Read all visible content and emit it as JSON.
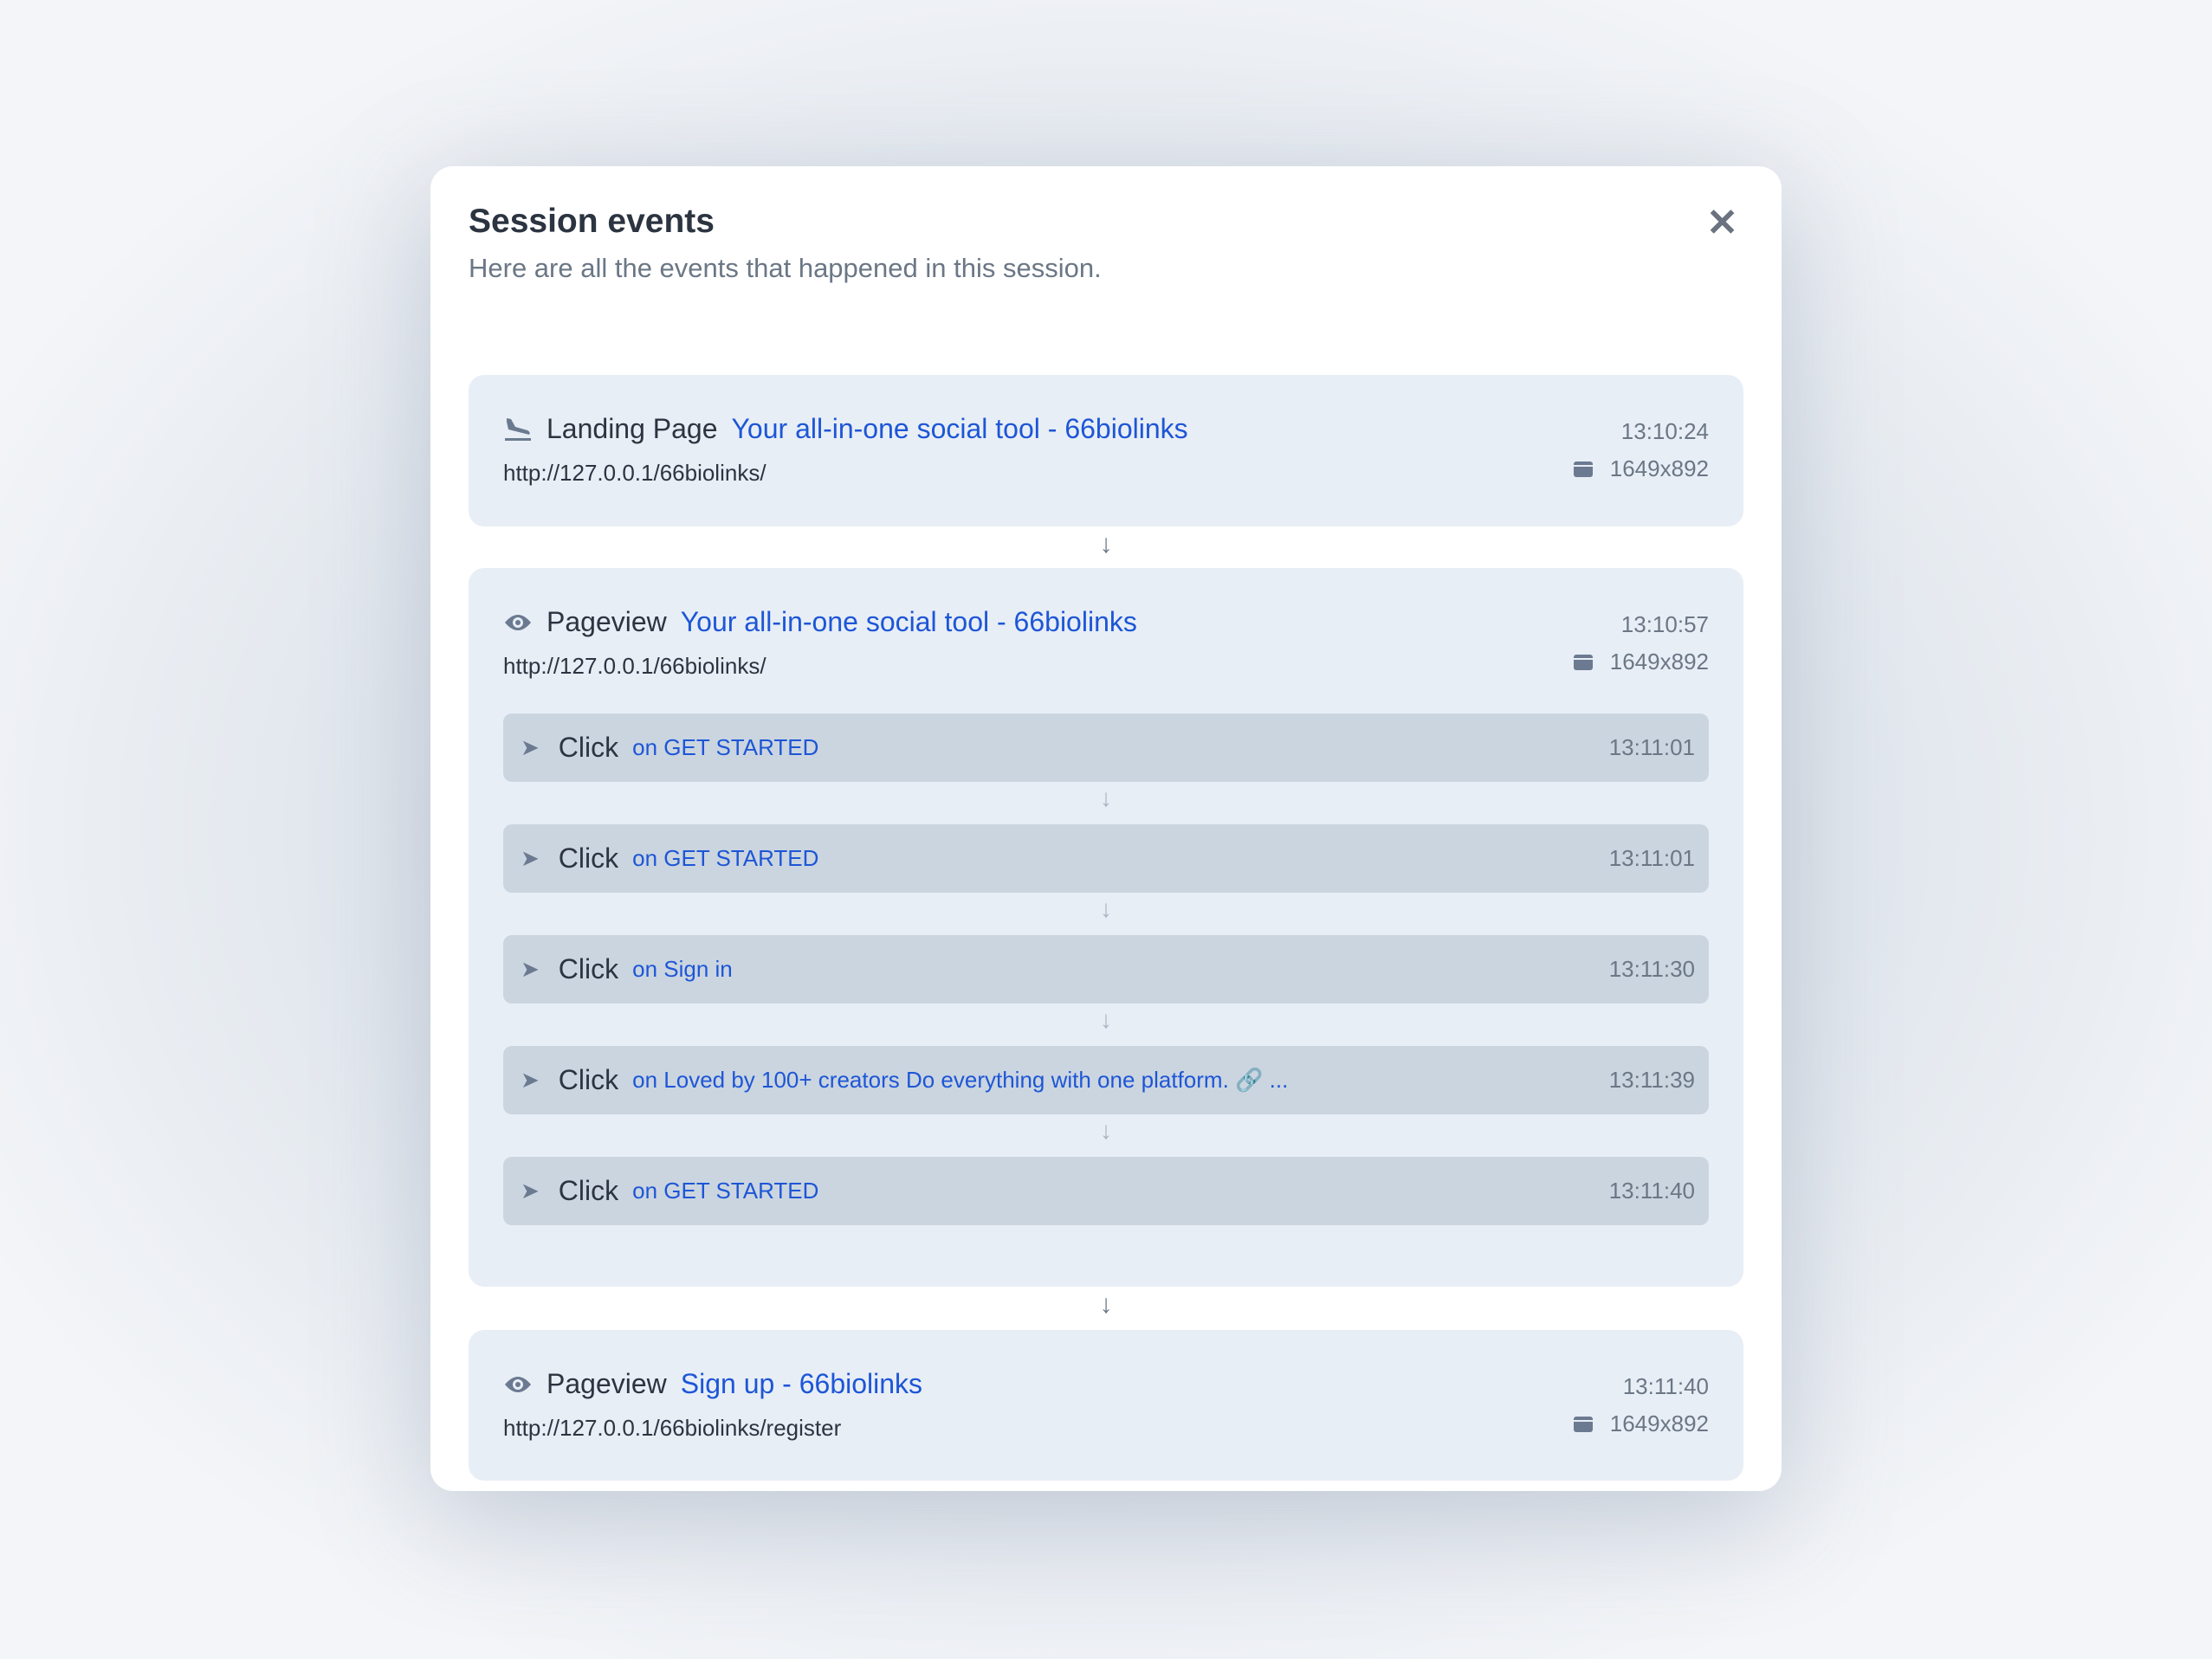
{
  "modal": {
    "title": "Session events",
    "subtitle": "Here are all the events that happened in this session.",
    "close_icon": "close-icon"
  },
  "events": [
    {
      "type": "Landing Page",
      "icon": "plane-landing-icon",
      "title": "Your all-in-one social tool - 66biolinks",
      "url": "http://127.0.0.1/66biolinks/",
      "time": "13:10:24",
      "resolution": "1649x892"
    },
    {
      "type": "Pageview",
      "icon": "eye-icon",
      "title": "Your all-in-one social tool - 66biolinks",
      "url": "http://127.0.0.1/66biolinks/",
      "time": "13:10:57",
      "resolution": "1649x892",
      "clicks": [
        {
          "type": "Click",
          "target": "on GET STARTED",
          "time": "13:11:01"
        },
        {
          "type": "Click",
          "target": "on GET STARTED",
          "time": "13:11:01"
        },
        {
          "type": "Click",
          "target": "on Sign in",
          "time": "13:11:30"
        },
        {
          "type": "Click",
          "target": "on Loved by 100+ creators Do everything with one platform. 🔗 ...",
          "time": "13:11:39"
        },
        {
          "type": "Click",
          "target": "on GET STARTED",
          "time": "13:11:40"
        }
      ]
    },
    {
      "type": "Pageview",
      "icon": "eye-icon",
      "title": "Sign up - 66biolinks",
      "url": "http://127.0.0.1/66biolinks/register",
      "time": "13:11:40",
      "resolution": "1649x892"
    }
  ],
  "colors": {
    "link": "#1d56d6",
    "card": "#e8eef6",
    "click_row": "#cbd5e0"
  }
}
